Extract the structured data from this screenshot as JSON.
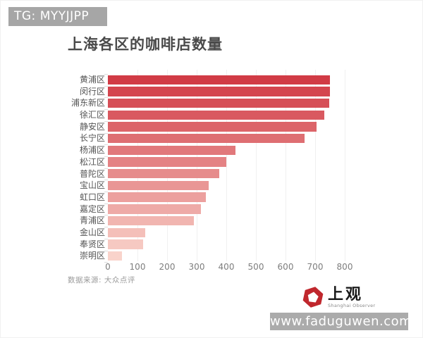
{
  "watermarks": {
    "top": "TG: MYYJJPP",
    "bottom": "www.faduguwen.com"
  },
  "chart_data": {
    "type": "bar",
    "orientation": "horizontal",
    "title": "上海各区的咖啡店数量",
    "categories": [
      "黄浦区",
      "闵行区",
      "浦东新区",
      "徐汇区",
      "静安区",
      "长宁区",
      "杨浦区",
      "松江区",
      "普陀区",
      "宝山区",
      "虹口区",
      "嘉定区",
      "青浦区",
      "金山区",
      "奉贤区",
      "崇明区"
    ],
    "values": [
      750,
      750,
      748,
      730,
      705,
      665,
      430,
      400,
      375,
      340,
      330,
      315,
      290,
      125,
      120,
      48
    ],
    "xlabel": "",
    "ylabel": "",
    "xlim": [
      0,
      800
    ],
    "x_ticks": [
      0,
      100,
      200,
      300,
      400,
      500,
      600,
      700,
      800
    ],
    "grid": "vertical-light",
    "legend": "none",
    "bar_color_start": "#d13b45",
    "bar_color_end": "#f9d3cb",
    "source": "数据来源: 大众点评"
  },
  "logo": {
    "cn": "上观",
    "en": "Shanghai Observer",
    "color": "#c0272d"
  }
}
